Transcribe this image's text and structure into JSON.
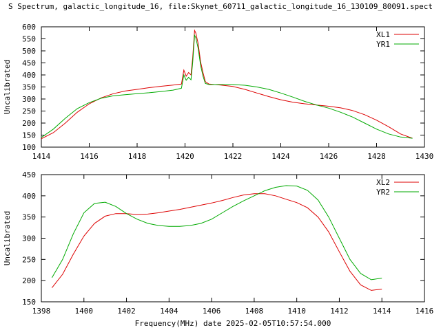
{
  "title": "S Spectrum, galactic_longitude_16, file:Skynet_60711_galactic_longitude_16_130109_80091.spect",
  "x_axis_label": "Frequency(MHz) date 2025-02-05T10:57:54.000",
  "chart_data": [
    {
      "type": "line",
      "ylabel": "Uncalibrated",
      "xlim": [
        1414,
        1430
      ],
      "ylim": [
        100,
        600
      ],
      "xticks": [
        1414,
        1416,
        1418,
        1420,
        1422,
        1424,
        1426,
        1428,
        1430
      ],
      "yticks": [
        100,
        150,
        200,
        250,
        300,
        350,
        400,
        450,
        500,
        550,
        600
      ],
      "legend": "top-right",
      "series": [
        {
          "name": "XL1",
          "color": "#dd0000",
          "x": [
            1414.0,
            1414.5,
            1415.0,
            1415.5,
            1416.0,
            1416.5,
            1417.0,
            1417.5,
            1418.0,
            1418.5,
            1419.0,
            1419.5,
            1419.85,
            1419.95,
            1420.05,
            1420.15,
            1420.25,
            1420.32,
            1420.4,
            1420.45,
            1420.55,
            1420.65,
            1420.75,
            1420.85,
            1421.0,
            1421.5,
            1422.0,
            1422.5,
            1423.0,
            1423.5,
            1424.0,
            1424.5,
            1425.0,
            1425.5,
            1426.0,
            1426.5,
            1427.0,
            1427.5,
            1428.0,
            1428.5,
            1429.0,
            1429.5
          ],
          "values": [
            135,
            160,
            200,
            245,
            280,
            305,
            322,
            333,
            340,
            347,
            353,
            358,
            362,
            420,
            395,
            410,
            400,
            470,
            585,
            575,
            530,
            455,
            410,
            372,
            362,
            358,
            352,
            340,
            325,
            310,
            297,
            287,
            280,
            275,
            270,
            263,
            252,
            235,
            212,
            185,
            155,
            137
          ]
        },
        {
          "name": "YR1",
          "color": "#00aa00",
          "x": [
            1414.0,
            1414.5,
            1415.0,
            1415.5,
            1416.0,
            1416.5,
            1417.0,
            1417.5,
            1418.0,
            1418.5,
            1419.0,
            1419.5,
            1419.85,
            1419.95,
            1420.05,
            1420.15,
            1420.25,
            1420.32,
            1420.4,
            1420.45,
            1420.55,
            1420.65,
            1420.75,
            1420.85,
            1421.0,
            1421.5,
            1422.0,
            1422.5,
            1423.0,
            1423.5,
            1424.0,
            1424.5,
            1425.0,
            1425.5,
            1426.0,
            1426.5,
            1427.0,
            1427.5,
            1428.0,
            1428.5,
            1429.0,
            1429.5
          ],
          "values": [
            140,
            175,
            220,
            260,
            285,
            303,
            313,
            318,
            322,
            326,
            331,
            337,
            345,
            400,
            378,
            390,
            380,
            450,
            565,
            555,
            510,
            440,
            395,
            365,
            360,
            360,
            360,
            357,
            350,
            340,
            325,
            308,
            290,
            275,
            262,
            245,
            225,
            200,
            175,
            155,
            142,
            137
          ]
        }
      ]
    },
    {
      "type": "line",
      "ylabel": "Uncalibrated",
      "xlim": [
        1398,
        1416
      ],
      "ylim": [
        150,
        450
      ],
      "xticks": [
        1398,
        1400,
        1402,
        1404,
        1406,
        1408,
        1410,
        1412,
        1414,
        1416
      ],
      "yticks": [
        150,
        200,
        250,
        300,
        350,
        400,
        450
      ],
      "legend": "top-right",
      "series": [
        {
          "name": "XL2",
          "color": "#dd0000",
          "x": [
            1398.5,
            1399.0,
            1399.5,
            1400.0,
            1400.5,
            1401.0,
            1401.5,
            1402.0,
            1402.5,
            1403.0,
            1403.5,
            1404.0,
            1404.5,
            1405.0,
            1405.5,
            1406.0,
            1406.5,
            1407.0,
            1407.5,
            1408.0,
            1408.5,
            1409.0,
            1409.5,
            1410.0,
            1410.5,
            1411.0,
            1411.5,
            1412.0,
            1412.5,
            1413.0,
            1413.5,
            1414.0
          ],
          "values": [
            183,
            215,
            262,
            305,
            335,
            352,
            358,
            358,
            356,
            357,
            360,
            364,
            368,
            373,
            378,
            383,
            389,
            396,
            402,
            405,
            405,
            400,
            392,
            384,
            372,
            350,
            315,
            268,
            222,
            190,
            177,
            180
          ]
        },
        {
          "name": "YR2",
          "color": "#00aa00",
          "x": [
            1398.5,
            1399.0,
            1399.5,
            1400.0,
            1400.5,
            1401.0,
            1401.5,
            1402.0,
            1402.5,
            1403.0,
            1403.5,
            1404.0,
            1404.5,
            1405.0,
            1405.5,
            1406.0,
            1406.5,
            1407.0,
            1407.5,
            1408.0,
            1408.5,
            1409.0,
            1409.5,
            1410.0,
            1410.5,
            1411.0,
            1411.5,
            1412.0,
            1412.5,
            1413.0,
            1413.5,
            1414.0
          ],
          "values": [
            207,
            250,
            310,
            360,
            382,
            385,
            375,
            358,
            345,
            335,
            330,
            328,
            328,
            330,
            335,
            345,
            360,
            375,
            388,
            400,
            412,
            420,
            424,
            423,
            413,
            390,
            350,
            300,
            250,
            217,
            202,
            206
          ]
        }
      ]
    }
  ]
}
